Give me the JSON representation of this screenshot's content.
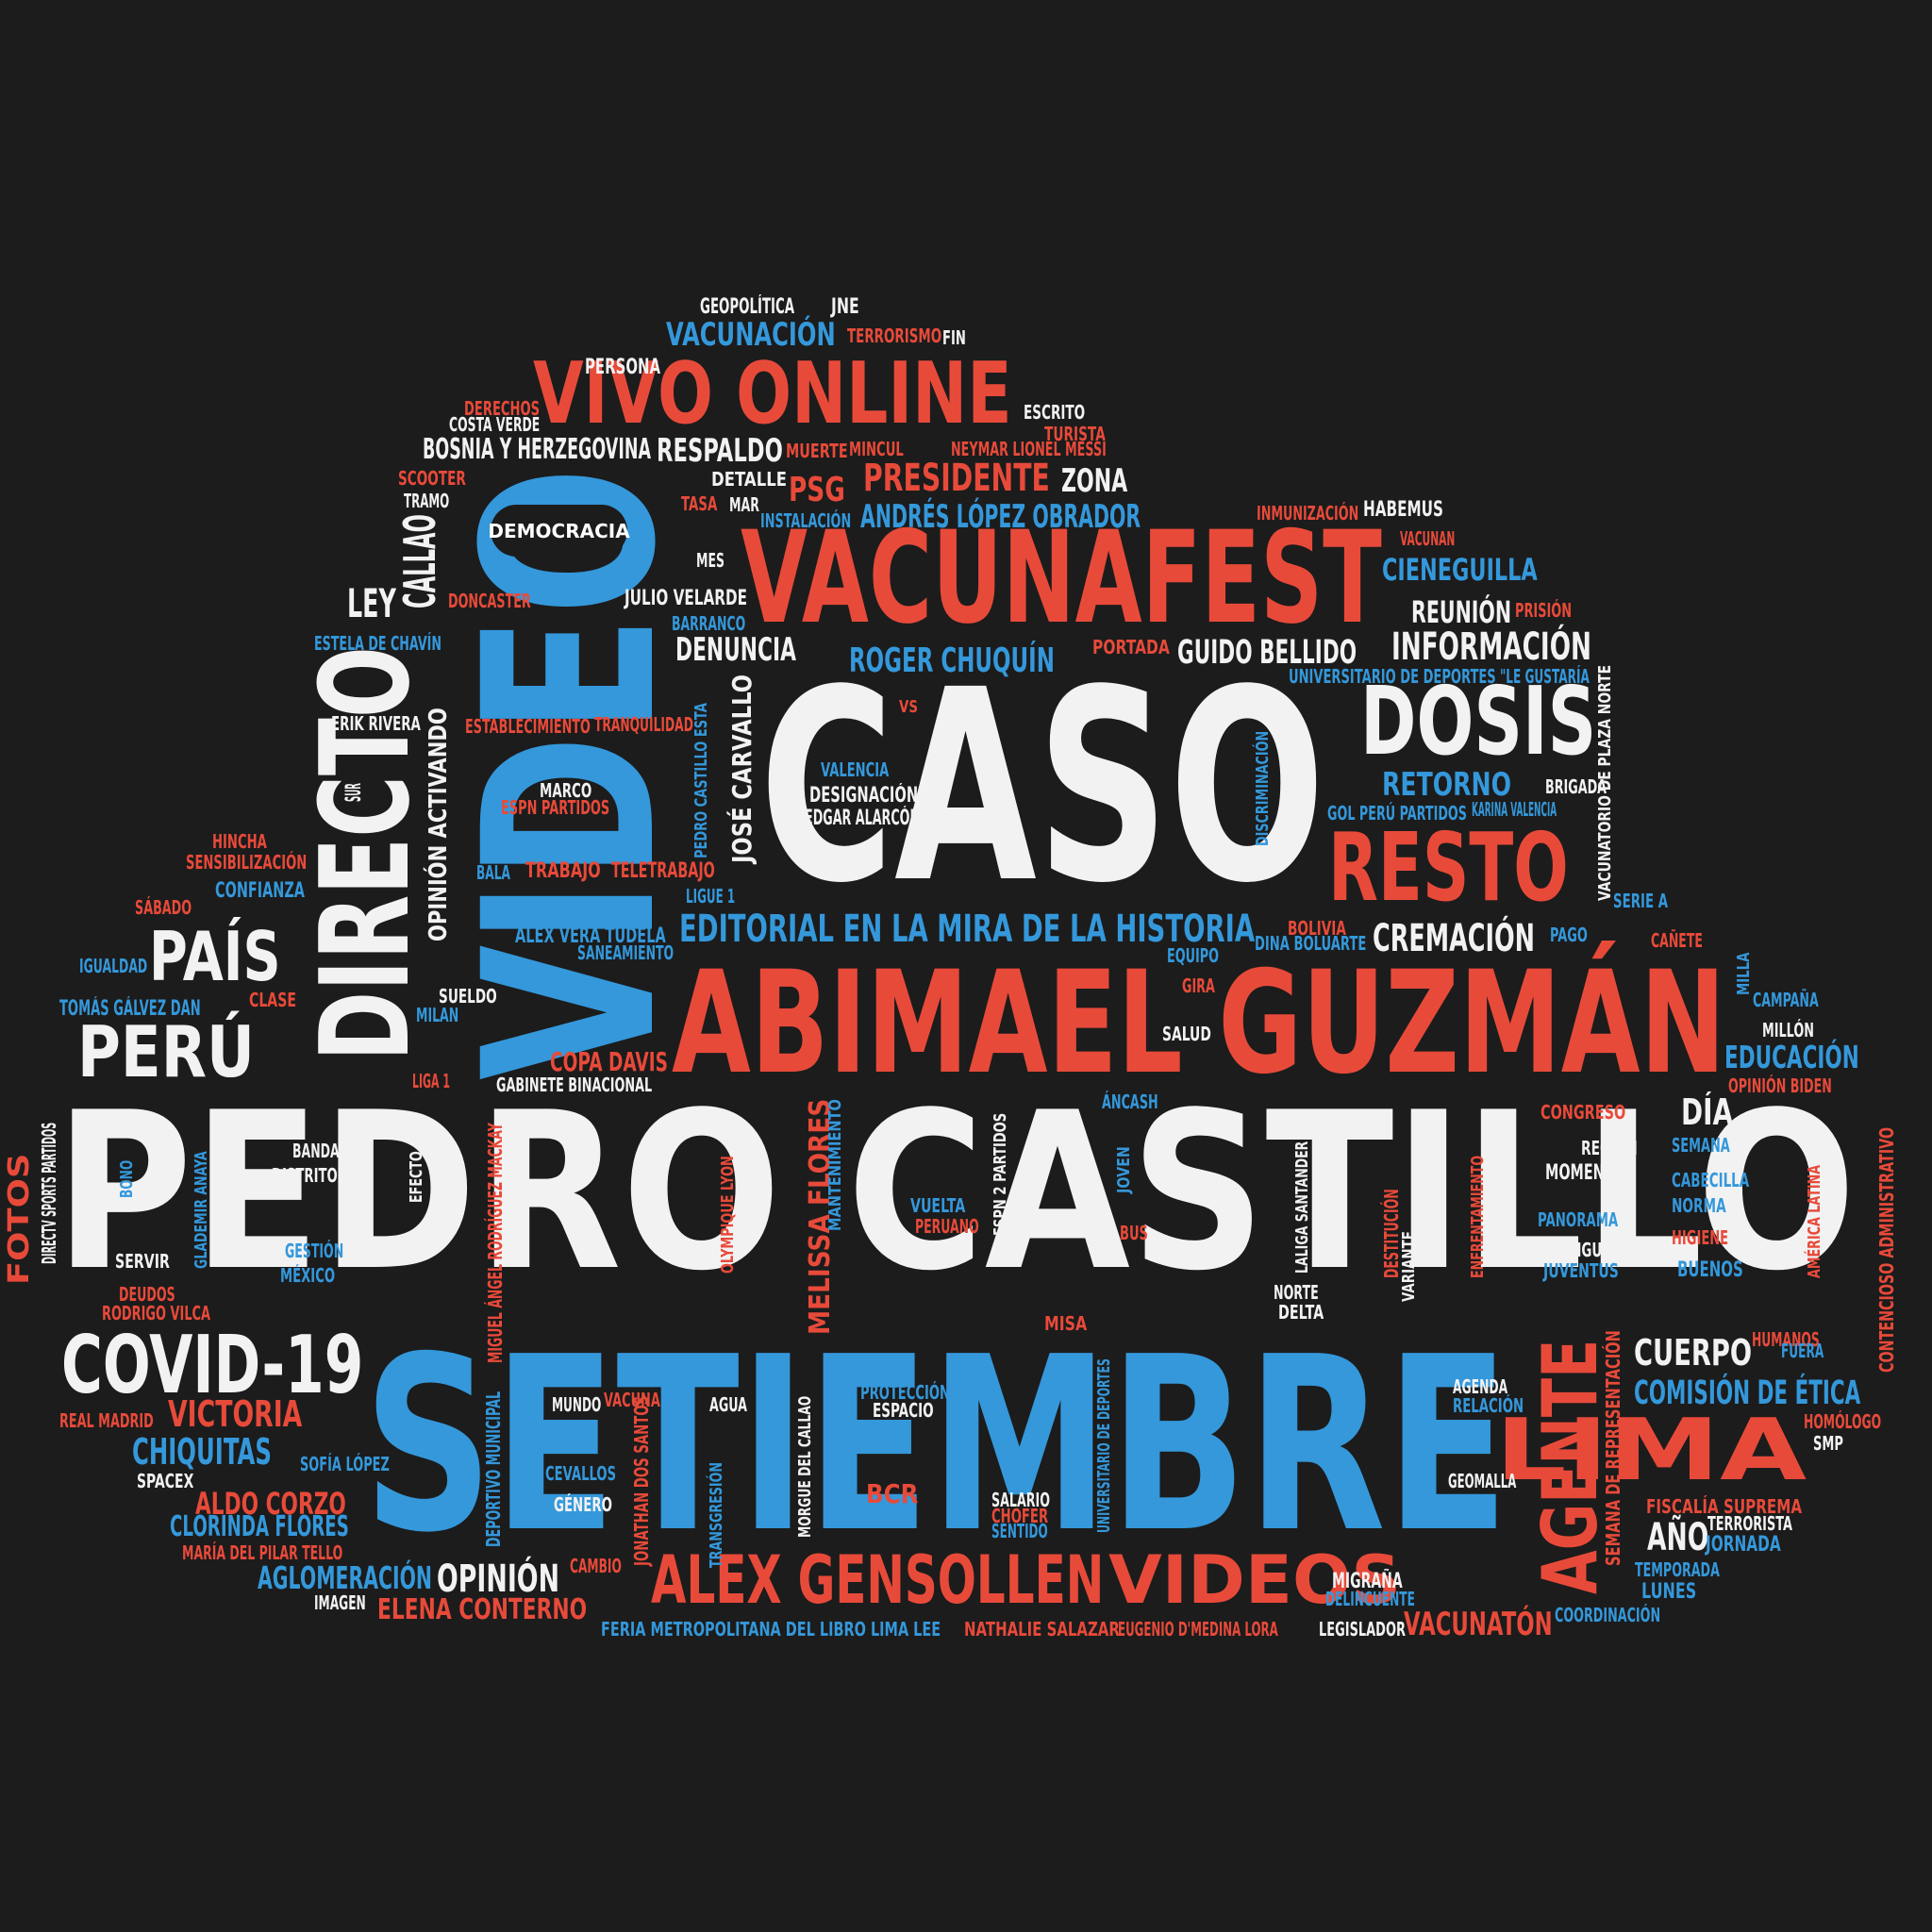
{
  "colors": {
    "background": "#1c1c1c",
    "white": "#f2f2f2",
    "red": "#e84a3a",
    "blue": "#3498db"
  },
  "words": [
    {
      "id": "w1",
      "text": "PEDRO CASTILLO",
      "color": "white"
    },
    {
      "id": "w2",
      "text": "SETIEMBRE",
      "color": "blue"
    },
    {
      "id": "w3",
      "text": "ABIMAEL GUZMÁN",
      "color": "red"
    },
    {
      "id": "w4",
      "text": "CASO",
      "color": "white"
    },
    {
      "id": "w5",
      "text": "VIDEO",
      "color": "blue"
    },
    {
      "id": "w6",
      "text": "VACUNAFEST",
      "color": "red"
    },
    {
      "id": "w7",
      "text": "VIVO ONLINE",
      "color": "red"
    },
    {
      "id": "w8",
      "text": "DIRECTO",
      "color": "white"
    },
    {
      "id": "w9",
      "text": "DOSIS",
      "color": "white"
    },
    {
      "id": "w10",
      "text": "RESTO",
      "color": "red"
    },
    {
      "id": "w11",
      "text": "ALEX GENSOLLEN",
      "color": "red"
    },
    {
      "id": "w12",
      "text": "VIDEOS",
      "color": "red"
    },
    {
      "id": "w13",
      "text": "COVID-19",
      "color": "white"
    },
    {
      "id": "w14",
      "text": "PERÚ",
      "color": "white"
    },
    {
      "id": "w15",
      "text": "PAÍS",
      "color": "white"
    },
    {
      "id": "w16",
      "text": "LIMA",
      "color": "red"
    },
    {
      "id": "w17",
      "text": "AGENTE",
      "color": "red"
    },
    {
      "id": "w18",
      "text": "EDITORIAL EN LA MIRA DE LA HISTORIA",
      "color": "blue"
    },
    {
      "id": "w19",
      "text": "PRESIDENTE",
      "color": "red"
    },
    {
      "id": "w20",
      "text": "ANDRÉS LÓPEZ OBRADOR",
      "color": "blue"
    },
    {
      "id": "w21",
      "text": "CALLAO",
      "color": "white"
    },
    {
      "id": "w22",
      "text": "LEY",
      "color": "white"
    },
    {
      "id": "w23",
      "text": "INFORMACIÓN",
      "color": "white"
    },
    {
      "id": "w24",
      "text": "GUIDO BELLIDO",
      "color": "white"
    },
    {
      "id": "w25",
      "text": "ROGER CHUQUÍN",
      "color": "blue"
    },
    {
      "id": "w26",
      "text": "CIENEGUILLA",
      "color": "blue"
    },
    {
      "id": "w27",
      "text": "REUNIÓN",
      "color": "white"
    },
    {
      "id": "w28",
      "text": "CREMACIÓN",
      "color": "white"
    },
    {
      "id": "w29",
      "text": "EDUCACIÓN",
      "color": "blue"
    },
    {
      "id": "w30",
      "text": "DÍA",
      "color": "white"
    },
    {
      "id": "w31",
      "text": "CUERPO",
      "color": "white"
    },
    {
      "id": "w32",
      "text": "COMISIÓN DE ÉTICA",
      "color": "blue"
    },
    {
      "id": "w33",
      "text": "VACUNATÓN",
      "color": "red"
    },
    {
      "id": "w34",
      "text": "OPINIÓN",
      "color": "white"
    },
    {
      "id": "w35",
      "text": "VICTORIA",
      "color": "red"
    },
    {
      "id": "w36",
      "text": "CHIQUITAS",
      "color": "blue"
    },
    {
      "id": "w37",
      "text": "ALDO CORZO",
      "color": "red"
    },
    {
      "id": "w38",
      "text": "CLORINDA FLORES",
      "color": "blue"
    },
    {
      "id": "w39",
      "text": "AGLOMERACIÓN",
      "color": "blue"
    },
    {
      "id": "w40",
      "text": "ELENA CONTERNO",
      "color": "red"
    },
    {
      "id": "w41",
      "text": "RETORNO",
      "color": "blue"
    },
    {
      "id": "w42",
      "text": "DENUNCIA",
      "color": "white"
    },
    {
      "id": "w43",
      "text": "RESPALDO",
      "color": "white"
    },
    {
      "id": "w44",
      "text": "ZONA",
      "color": "white"
    },
    {
      "id": "w45",
      "text": "PSG",
      "color": "red"
    },
    {
      "id": "w46",
      "text": "VACUNACIÓN",
      "color": "blue"
    },
    {
      "id": "w47",
      "text": "BOSNIA Y HERZEGOVINA",
      "color": "white"
    },
    {
      "id": "w48",
      "text": "MELISSA FLORES",
      "color": "red"
    },
    {
      "id": "w49",
      "text": "JOSÉ CARVALLO",
      "color": "white"
    },
    {
      "id": "w50",
      "text": "OPINIÓN ACTIVANDO",
      "color": "white"
    },
    {
      "id": "w51",
      "text": "COPA DAVIS",
      "color": "red"
    },
    {
      "id": "w52",
      "text": "AÑO",
      "color": "white"
    },
    {
      "id": "w53",
      "text": "FOTOS",
      "color": "red"
    },
    {
      "id": "w54",
      "text": "PERSONA",
      "color": "white"
    },
    {
      "id": "w55",
      "text": "GEOPOLÍTICA",
      "color": "white"
    },
    {
      "id": "w56",
      "text": "JNE",
      "color": "white"
    },
    {
      "id": "w57",
      "text": "TERRORISMO",
      "color": "red"
    },
    {
      "id": "w58",
      "text": "FIN",
      "color": "white"
    },
    {
      "id": "w59",
      "text": "DERECHOS",
      "color": "red"
    },
    {
      "id": "w60",
      "text": "COSTA VERDE",
      "color": "white"
    },
    {
      "id": "w61",
      "text": "ESCRITO",
      "color": "white"
    },
    {
      "id": "w62",
      "text": "TURISTA",
      "color": "red"
    },
    {
      "id": "w63",
      "text": "NEYMAR LIONEL MESSI",
      "color": "red"
    },
    {
      "id": "w64",
      "text": "MUERTE",
      "color": "red"
    },
    {
      "id": "w65",
      "text": "MINCUL",
      "color": "red"
    },
    {
      "id": "w66",
      "text": "SCOOTER",
      "color": "red"
    },
    {
      "id": "w67",
      "text": "TRAMO",
      "color": "white"
    },
    {
      "id": "w68",
      "text": "DETALLE",
      "color": "white"
    },
    {
      "id": "w69",
      "text": "TASA",
      "color": "red"
    },
    {
      "id": "w70",
      "text": "MAR",
      "color": "white"
    },
    {
      "id": "w71",
      "text": "INSTALACIÓN",
      "color": "blue"
    },
    {
      "id": "w72",
      "text": "INMUNIZACIÓN",
      "color": "red"
    },
    {
      "id": "w73",
      "text": "HABEMUS",
      "color": "white"
    },
    {
      "id": "w74",
      "text": "VACUNAN",
      "color": "red"
    },
    {
      "id": "w75",
      "text": "MES",
      "color": "white"
    },
    {
      "id": "w76",
      "text": "JULIO VELARDE",
      "color": "white"
    },
    {
      "id": "w77",
      "text": "DONCASTER",
      "color": "red"
    },
    {
      "id": "w78",
      "text": "BARRANCO",
      "color": "blue"
    },
    {
      "id": "w79",
      "text": "PRISIÓN",
      "color": "red"
    },
    {
      "id": "w80",
      "text": "PORTADA",
      "color": "red"
    },
    {
      "id": "w81",
      "text": "UNIVERSITARIO DE DEPORTES",
      "color": "blue"
    },
    {
      "id": "w82",
      "text": "\"LE GUSTARÍA",
      "color": "blue"
    },
    {
      "id": "w83",
      "text": "ESTELA DE CHAVÍN",
      "color": "blue"
    },
    {
      "id": "w84",
      "text": "ERIK RIVERA",
      "color": "white"
    },
    {
      "id": "w85",
      "text": "ESTABLECIMIENTO",
      "color": "red"
    },
    {
      "id": "w86",
      "text": "TRANQUILIDAD",
      "color": "red"
    },
    {
      "id": "w87",
      "text": "VS",
      "color": "red"
    },
    {
      "id": "w88",
      "text": "VALENCIA",
      "color": "blue"
    },
    {
      "id": "w89",
      "text": "BRIGADA",
      "color": "white"
    },
    {
      "id": "w90",
      "text": "GOL PERÚ PARTIDOS",
      "color": "blue"
    },
    {
      "id": "w91",
      "text": "KARINA VALENCIA",
      "color": "blue"
    },
    {
      "id": "w92",
      "text": "MARCO",
      "color": "white"
    },
    {
      "id": "w93",
      "text": "ESPN PARTIDOS",
      "color": "red"
    },
    {
      "id": "w94",
      "text": "DESIGNACIÓN",
      "color": "white"
    },
    {
      "id": "w95",
      "text": "EDGAR ALARCÓN",
      "color": "white"
    },
    {
      "id": "w96",
      "text": "SUR",
      "color": "white"
    },
    {
      "id": "w97",
      "text": "HINCHA",
      "color": "red"
    },
    {
      "id": "w98",
      "text": "SENSIBILIZACIÓN",
      "color": "red"
    },
    {
      "id": "w99",
      "text": "BALA",
      "color": "blue"
    },
    {
      "id": "w100",
      "text": "TRABAJO",
      "color": "red"
    },
    {
      "id": "w101",
      "text": "TELETRABAJO",
      "color": "red"
    },
    {
      "id": "w102",
      "text": "LIGUE 1",
      "color": "blue"
    },
    {
      "id": "w103",
      "text": "CONFIANZA",
      "color": "blue"
    },
    {
      "id": "w104",
      "text": "SÁBADO",
      "color": "red"
    },
    {
      "id": "w105",
      "text": "SERIE A",
      "color": "blue"
    },
    {
      "id": "w106",
      "text": "ALEX VERA TUDELA",
      "color": "blue"
    },
    {
      "id": "w107",
      "text": "SANEAMIENTO",
      "color": "blue"
    },
    {
      "id": "w108",
      "text": "BOLIVIA",
      "color": "red"
    },
    {
      "id": "w109",
      "text": "DINA BOLUARTE",
      "color": "blue"
    },
    {
      "id": "w110",
      "text": "EQUIPO",
      "color": "blue"
    },
    {
      "id": "w111",
      "text": "PAGO",
      "color": "blue"
    },
    {
      "id": "w112",
      "text": "CAÑETE",
      "color": "red"
    },
    {
      "id": "w113",
      "text": "IGUALDAD",
      "color": "blue"
    },
    {
      "id": "w114",
      "text": "TOMÁS GÁLVEZ DAN",
      "color": "blue"
    },
    {
      "id": "w115",
      "text": "CLASE",
      "color": "red"
    },
    {
      "id": "w116",
      "text": "SUELDO",
      "color": "white"
    },
    {
      "id": "w117",
      "text": "MILAN",
      "color": "blue"
    },
    {
      "id": "w118",
      "text": "GIRA",
      "color": "red"
    },
    {
      "id": "w119",
      "text": "MILLA",
      "color": "blue"
    },
    {
      "id": "w120",
      "text": "CAMPAÑA",
      "color": "blue"
    },
    {
      "id": "w121",
      "text": "MILLÓN",
      "color": "white"
    },
    {
      "id": "w122",
      "text": "SALUD",
      "color": "white"
    },
    {
      "id": "w123",
      "text": "LIGA 1",
      "color": "red"
    },
    {
      "id": "w124",
      "text": "GABINETE BINACIONAL",
      "color": "white"
    },
    {
      "id": "w125",
      "text": "OPINIÓN BIDEN",
      "color": "red"
    },
    {
      "id": "w126",
      "text": "ÁNCASH",
      "color": "blue"
    },
    {
      "id": "w127",
      "text": "CONGRESO",
      "color": "red"
    },
    {
      "id": "w128",
      "text": "REGIÓN",
      "color": "white"
    },
    {
      "id": "w129",
      "text": "MOMENTO",
      "color": "white"
    },
    {
      "id": "w130",
      "text": "SEMANA",
      "color": "blue"
    },
    {
      "id": "w131",
      "text": "CABECILLA",
      "color": "blue"
    },
    {
      "id": "w132",
      "text": "NORMA",
      "color": "blue"
    },
    {
      "id": "w133",
      "text": "HIGIENE",
      "color": "red"
    },
    {
      "id": "w134",
      "text": "PANORAMA",
      "color": "blue"
    },
    {
      "id": "w135",
      "text": "CANGURO",
      "color": "white"
    },
    {
      "id": "w136",
      "text": "JUVENTUS",
      "color": "blue"
    },
    {
      "id": "w137",
      "text": "BUENOS",
      "color": "blue"
    },
    {
      "id": "w138",
      "text": "NORTE",
      "color": "white"
    },
    {
      "id": "w139",
      "text": "DELTA",
      "color": "white"
    },
    {
      "id": "w140",
      "text": "BANDA",
      "color": "white"
    },
    {
      "id": "w141",
      "text": "DISTRITO",
      "color": "white"
    },
    {
      "id": "w142",
      "text": "SERVIR",
      "color": "white"
    },
    {
      "id": "w143",
      "text": "GESTIÓN",
      "color": "blue"
    },
    {
      "id": "w144",
      "text": "MÉXICO",
      "color": "blue"
    },
    {
      "id": "w145",
      "text": "DEUDOS",
      "color": "red"
    },
    {
      "id": "w146",
      "text": "RODRIGO VILCA",
      "color": "red"
    },
    {
      "id": "w147",
      "text": "REAL MADRID",
      "color": "red"
    },
    {
      "id": "w148",
      "text": "SPACEX",
      "color": "white"
    },
    {
      "id": "w149",
      "text": "SOFÍA LÓPEZ",
      "color": "blue"
    },
    {
      "id": "w150",
      "text": "MARÍA DEL PILAR TELLO",
      "color": "red"
    },
    {
      "id": "w151",
      "text": "IMAGEN",
      "color": "white"
    },
    {
      "id": "w152",
      "text": "MUNDO",
      "color": "white"
    },
    {
      "id": "w153",
      "text": "VACUNA",
      "color": "red"
    },
    {
      "id": "w154",
      "text": "AGUA",
      "color": "white"
    },
    {
      "id": "w155",
      "text": "CEVALLOS",
      "color": "blue"
    },
    {
      "id": "w156",
      "text": "GÉNERO",
      "color": "white"
    },
    {
      "id": "w157",
      "text": "CAMBIO",
      "color": "red"
    },
    {
      "id": "w158",
      "text": "PROTECCIÓN",
      "color": "blue"
    },
    {
      "id": "w159",
      "text": "ESPACIO",
      "color": "white"
    },
    {
      "id": "w160",
      "text": "BCR",
      "color": "red"
    },
    {
      "id": "w161",
      "text": "SALARIO",
      "color": "white"
    },
    {
      "id": "w162",
      "text": "CHOFER",
      "color": "red"
    },
    {
      "id": "w163",
      "text": "SENTIDO",
      "color": "blue"
    },
    {
      "id": "w164",
      "text": "FERIA METROPOLITANA DEL LIBRO LIMA LEE",
      "color": "blue"
    },
    {
      "id": "w165",
      "text": "NATHALIE SALAZAR",
      "color": "red"
    },
    {
      "id": "w166",
      "text": "EUGENIO D'MEDINA LORA",
      "color": "red"
    },
    {
      "id": "w167",
      "text": "LEGISLADOR",
      "color": "white"
    },
    {
      "id": "w168",
      "text": "MIGRAÑA",
      "color": "white"
    },
    {
      "id": "w169",
      "text": "DELINCUENTE",
      "color": "blue"
    },
    {
      "id": "w170",
      "text": "AGENDA",
      "color": "white"
    },
    {
      "id": "w171",
      "text": "RELACIÓN",
      "color": "blue"
    },
    {
      "id": "w172",
      "text": "GEOMALLA",
      "color": "white"
    },
    {
      "id": "w173",
      "text": "HUMANOS",
      "color": "red"
    },
    {
      "id": "w174",
      "text": "FUERA",
      "color": "blue"
    },
    {
      "id": "w175",
      "text": "HOMÓLOGO",
      "color": "red"
    },
    {
      "id": "w176",
      "text": "SMP",
      "color": "white"
    },
    {
      "id": "w177",
      "text": "FISCALÍA SUPREMA",
      "color": "red"
    },
    {
      "id": "w178",
      "text": "TERRORISTA",
      "color": "white"
    },
    {
      "id": "w179",
      "text": "JORNADA",
      "color": "blue"
    },
    {
      "id": "w180",
      "text": "TEMPORADA",
      "color": "blue"
    },
    {
      "id": "w181",
      "text": "LUNES",
      "color": "blue"
    },
    {
      "id": "w182",
      "text": "COORDINACIÓN",
      "color": "blue"
    },
    {
      "id": "w183",
      "text": "MISA",
      "color": "red"
    },
    {
      "id": "w184",
      "text": "VUELTA",
      "color": "blue"
    },
    {
      "id": "w185",
      "text": "PERUANO",
      "color": "red"
    },
    {
      "id": "w186",
      "text": "BUS",
      "color": "red"
    },
    {
      "id": "w187",
      "text": "DIRECTV SPORTS PARTIDOS",
      "color": "white"
    },
    {
      "id": "w188",
      "text": "BONO",
      "color": "blue"
    },
    {
      "id": "w189",
      "text": "GLADEMIR ANAYA",
      "color": "blue"
    },
    {
      "id": "w190",
      "text": "EFECTO",
      "color": "white"
    },
    {
      "id": "w191",
      "text": "MIGUEL ÁNGEL RODRÍGUEZ MACKAY",
      "color": "red"
    },
    {
      "id": "w192",
      "text": "OLYMPIQUE LYON",
      "color": "red"
    },
    {
      "id": "w193",
      "text": "MANTENIMIENTO",
      "color": "blue"
    },
    {
      "id": "w194",
      "text": "ESPN 2 PARTIDOS",
      "color": "white"
    },
    {
      "id": "w195",
      "text": "JOVEN",
      "color": "blue"
    },
    {
      "id": "w196",
      "text": "LALIGA SANTANDER",
      "color": "white"
    },
    {
      "id": "w197",
      "text": "DESTITUCIÓN",
      "color": "red"
    },
    {
      "id": "w198",
      "text": "VARIANTE",
      "color": "white"
    },
    {
      "id": "w199",
      "text": "ENFRENTAMIENTO",
      "color": "red"
    },
    {
      "id": "w200",
      "text": "AMÉRICA LATINA",
      "color": "red"
    },
    {
      "id": "w201",
      "text": "CONTENCIOSO ADMINISTRATIVO",
      "color": "red"
    },
    {
      "id": "w202",
      "text": "DEPORTIVO MUNICIPAL",
      "color": "blue"
    },
    {
      "id": "w203",
      "text": "JONATHAN DOS SANTOS",
      "color": "red"
    },
    {
      "id": "w204",
      "text": "TRANSGRESIÓN",
      "color": "blue"
    },
    {
      "id": "w205",
      "text": "MORGUE DEL CALLAO",
      "color": "white"
    },
    {
      "id": "w206",
      "text": "UNIVERSITARIO DE DEPORTES",
      "color": "blue"
    },
    {
      "id": "w207",
      "text": "SEMANA DE REPRESENTACIÓN",
      "color": "red"
    },
    {
      "id": "w208",
      "text": "PEDRO CASTILLO ESTA",
      "color": "blue"
    },
    {
      "id": "w209",
      "text": "DISCRIMINACIÓN",
      "color": "blue"
    },
    {
      "id": "w210",
      "text": "VACUNATORIO DE PLAZA NORTE",
      "color": "white"
    }
  ],
  "badge": {
    "text": "DEMOCRACIA"
  }
}
